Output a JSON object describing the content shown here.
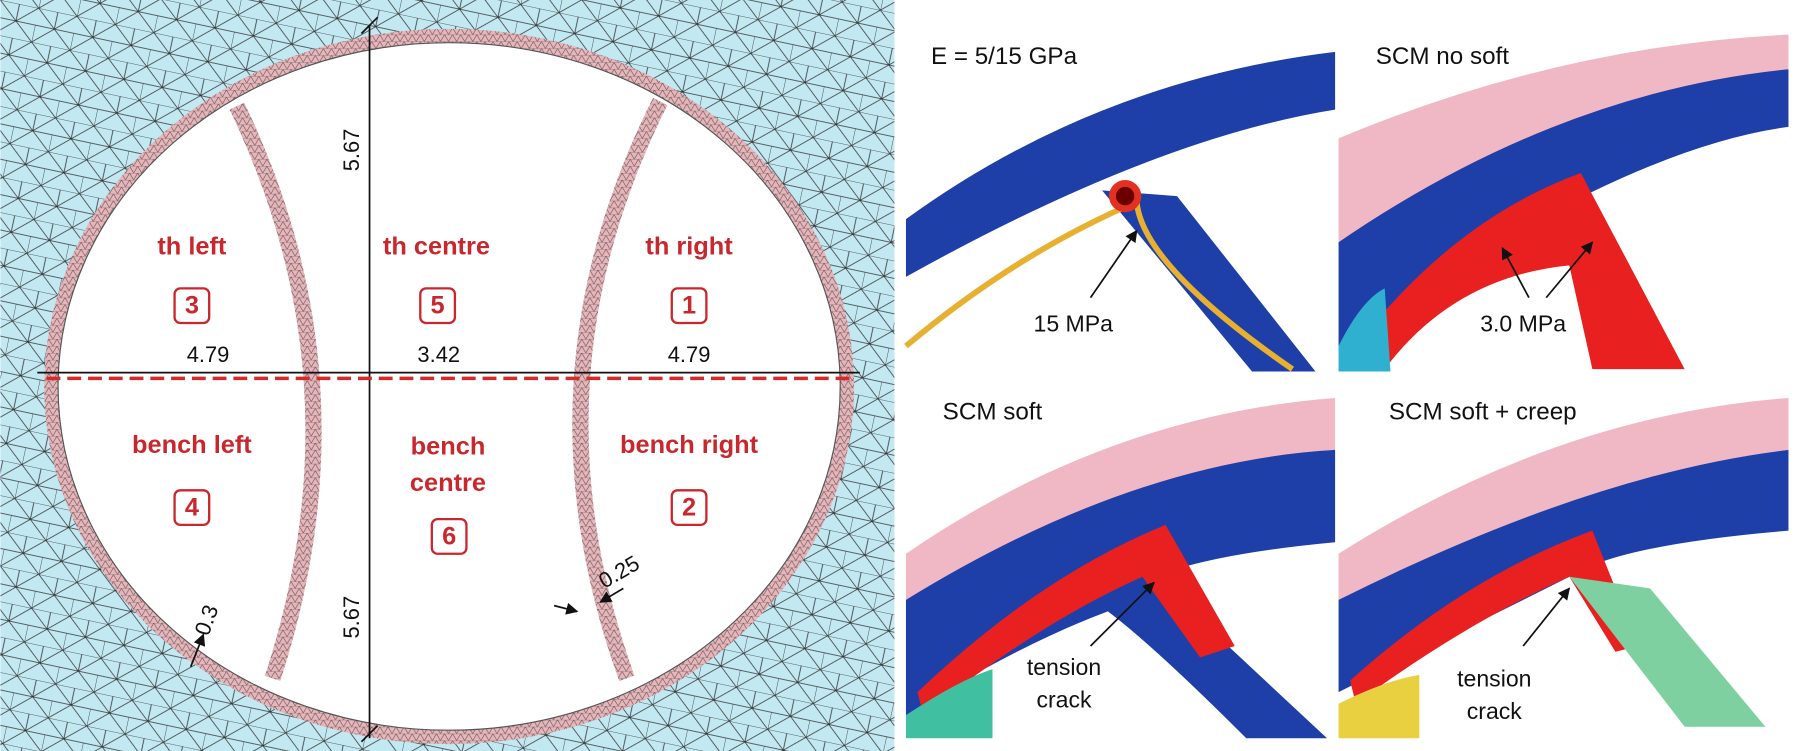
{
  "mesh_model": {
    "sections": [
      {
        "name": "th left",
        "number": "3"
      },
      {
        "name": "th centre",
        "number": "5"
      },
      {
        "name": "th right",
        "number": "1"
      },
      {
        "name": "bench left",
        "number": "4"
      },
      {
        "name_lines": [
          "bench",
          "centre"
        ],
        "number": "6"
      },
      {
        "name": "bench right",
        "number": "2"
      }
    ],
    "dimensions": {
      "height_top": "5.67",
      "height_bottom": "5.67",
      "width_left": "4.79",
      "width_centre": "3.42",
      "width_right": "4.79",
      "lining": "0.3",
      "wall": "0.25"
    }
  },
  "panels": [
    {
      "title": "E = 5/15 GPa",
      "annotation": [
        "15 MPa"
      ]
    },
    {
      "title": "SCM no soft",
      "annotation": [
        "3.0 MPa"
      ]
    },
    {
      "title": "SCM soft",
      "annotation": [
        "tension",
        "crack"
      ]
    },
    {
      "title": "SCM soft + creep",
      "annotation": [
        "tension",
        "crack"
      ]
    }
  ]
}
